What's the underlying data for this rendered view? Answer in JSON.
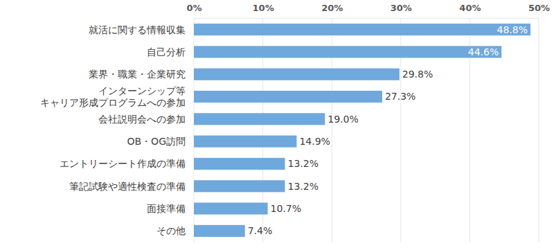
{
  "chart_data": {
    "type": "bar",
    "orientation": "horizontal",
    "categories": [
      "就活に関する情報収集",
      "自己分析",
      "業界・職業・企業研究",
      "インターンシップ等\nキャリア形成プログラムへの参加",
      "会社説明会への参加",
      "OB・OG訪問",
      "エントリーシート作成の準備",
      "筆記試験や適性検査の準備",
      "面接準備",
      "その他"
    ],
    "values": [
      48.8,
      44.6,
      29.8,
      27.3,
      19.0,
      14.9,
      13.2,
      13.2,
      10.7,
      7.4
    ],
    "value_labels": [
      "48.8%",
      "44.6%",
      "29.8%",
      "27.3%",
      "19.0%",
      "14.9%",
      "13.2%",
      "13.2%",
      "10.7%",
      "7.4%"
    ],
    "color": "#6fa8dc",
    "xlim": [
      0,
      50
    ],
    "xticks": [
      {
        "value": 0,
        "label": "0%"
      },
      {
        "value": 10,
        "label": "10%"
      },
      {
        "value": 20,
        "label": "20%"
      },
      {
        "value": 30,
        "label": "30%"
      },
      {
        "value": 40,
        "label": "40%"
      },
      {
        "value": 50,
        "label": "50%"
      }
    ],
    "grid": true,
    "data_labels": true
  }
}
